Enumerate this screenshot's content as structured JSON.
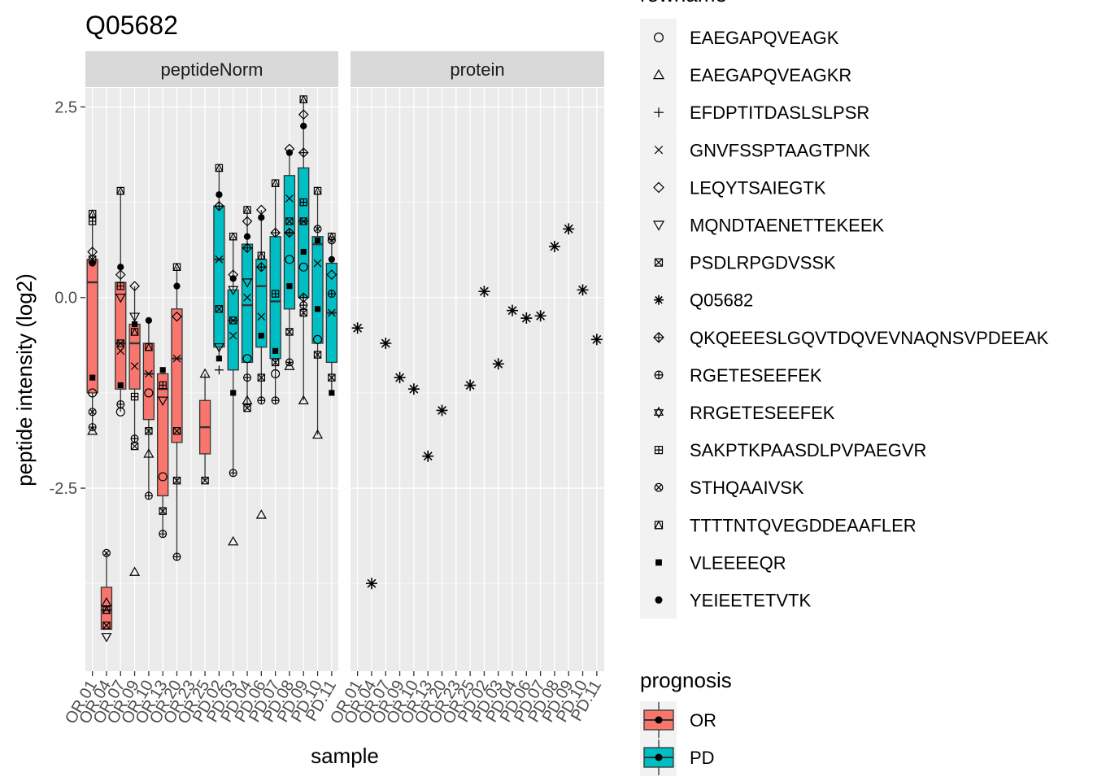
{
  "chart_data": {
    "type": "boxplot",
    "title": "Q05682",
    "xlabel": "sample",
    "ylabel": "peptide intensity (log2)",
    "ylim": [
      -4.9,
      2.75
    ],
    "yticks": [
      -2.5,
      0.0,
      2.5
    ],
    "ytick_labels": [
      "-2.5",
      "0.0",
      "2.5"
    ],
    "grid": true,
    "panels": [
      "peptideNorm",
      "protein"
    ],
    "samples": [
      "OR.01",
      "OR.04",
      "OR.07",
      "OR.09",
      "OR.10",
      "OR.13",
      "OR.20",
      "OR.23",
      "OR.25",
      "PD.02",
      "PD.03",
      "PD.04",
      "PD.06",
      "PD.07",
      "PD.08",
      "PD.09",
      "PD.10",
      "PD.11"
    ],
    "sample_prognosis": [
      "OR",
      "OR",
      "OR",
      "OR",
      "OR",
      "OR",
      "OR",
      "OR",
      "OR",
      "PD",
      "PD",
      "PD",
      "PD",
      "PD",
      "PD",
      "PD",
      "PD",
      "PD"
    ],
    "legend_rowname": {
      "title": "rowname",
      "entries": [
        {
          "label": "EAEGAPQVEAGK",
          "shape": "circle-open"
        },
        {
          "label": "EAEGAPQVEAGKR",
          "shape": "triangle-open"
        },
        {
          "label": "EFDPTITDASLSLPSR",
          "shape": "plus"
        },
        {
          "label": "GNVFSSPTAAGTPNK",
          "shape": "cross"
        },
        {
          "label": "LEQYTSAIEGTK",
          "shape": "diamond-open"
        },
        {
          "label": "MQNDTAENETTEKEEK",
          "shape": "triangle-down-open"
        },
        {
          "label": "PSDLRPGDVSSK",
          "shape": "square-cross"
        },
        {
          "label": "Q05682",
          "shape": "asterisk"
        },
        {
          "label": "QKQEEESLGQVTDQVEVNAQNSVPDEEAK",
          "shape": "diamond-plus"
        },
        {
          "label": "RGETESEEFEK",
          "shape": "circle-plus"
        },
        {
          "label": "RRGETESEEFEK",
          "shape": "triangles-up-down"
        },
        {
          "label": "SAKPTKPAASDLPVPAEGVR",
          "shape": "square-plus"
        },
        {
          "label": "STHQAAIVSK",
          "shape": "circle-cross"
        },
        {
          "label": "TTTTNTQVEGDDEAAFLER",
          "shape": "square-triangle"
        },
        {
          "label": "VLEEEEQR",
          "shape": "square-filled"
        },
        {
          "label": "YEIEETETVTK",
          "shape": "circle-filled"
        }
      ]
    },
    "legend_prognosis": {
      "title": "prognosis",
      "entries": [
        {
          "label": "OR",
          "color": "#F8766D"
        },
        {
          "label": "PD",
          "color": "#00BFC4"
        }
      ]
    },
    "boxes": [
      {
        "sample": "OR.01",
        "q1": -1.25,
        "med": 0.2,
        "q3": 0.5,
        "lo": -1.7,
        "hi": 1.1
      },
      {
        "sample": "OR.04",
        "q1": -4.35,
        "med": -4.1,
        "q3": -3.8,
        "lo": -4.35,
        "hi": -3.35
      },
      {
        "sample": "OR.07",
        "q1": -1.2,
        "med": -0.6,
        "q3": 0.2,
        "lo": -1.5,
        "hi": 1.4
      },
      {
        "sample": "OR.09",
        "q1": -1.2,
        "med": -0.6,
        "q3": -0.35,
        "lo": -1.85,
        "hi": 0.15
      },
      {
        "sample": "OR.10",
        "q1": -1.6,
        "med": -1.0,
        "q3": -0.6,
        "lo": -2.6,
        "hi": -0.3
      },
      {
        "sample": "OR.13",
        "q1": -2.6,
        "med": -1.2,
        "q3": -1.0,
        "lo": -3.1,
        "hi": -0.95
      },
      {
        "sample": "OR.20",
        "q1": -1.9,
        "med": -0.8,
        "q3": -0.15,
        "lo": -3.4,
        "hi": 0.4
      },
      {
        "sample": "OR.25",
        "q1": -2.05,
        "med": -1.7,
        "q3": -1.35,
        "lo": -2.4,
        "hi": -1.0
      },
      {
        "sample": "PD.02",
        "q1": -0.65,
        "med": 0.5,
        "q3": 1.2,
        "lo": -0.8,
        "hi": 1.7
      },
      {
        "sample": "PD.03",
        "q1": -0.95,
        "med": -0.3,
        "q3": 0.1,
        "lo": -2.3,
        "hi": 0.8
      },
      {
        "sample": "PD.04",
        "q1": -0.85,
        "med": -0.1,
        "q3": 0.7,
        "lo": -1.45,
        "hi": 1.15
      },
      {
        "sample": "PD.06",
        "q1": -0.65,
        "med": 0.15,
        "q3": 0.5,
        "lo": -1.35,
        "hi": 1.15
      },
      {
        "sample": "PD.07",
        "q1": -0.8,
        "med": -0.05,
        "q3": 0.8,
        "lo": -1.35,
        "hi": 1.5
      },
      {
        "sample": "PD.08",
        "q1": -0.15,
        "med": 0.85,
        "q3": 1.6,
        "lo": -0.9,
        "hi": 1.95
      },
      {
        "sample": "PD.09",
        "q1": 0.0,
        "med": 1.0,
        "q3": 1.7,
        "lo": -1.35,
        "hi": 2.6
      },
      {
        "sample": "PD.10",
        "q1": -0.6,
        "med": 0.7,
        "q3": 0.8,
        "lo": -1.8,
        "hi": 1.4
      },
      {
        "sample": "PD.11",
        "q1": -0.85,
        "med": -0.2,
        "q3": 0.45,
        "lo": -1.25,
        "hi": 0.8
      }
    ],
    "protein_points": [
      {
        "sample": "OR.01",
        "y": -0.4
      },
      {
        "sample": "OR.04",
        "y": -3.75
      },
      {
        "sample": "OR.07",
        "y": -0.6
      },
      {
        "sample": "OR.09",
        "y": -1.05
      },
      {
        "sample": "OR.10",
        "y": -1.2
      },
      {
        "sample": "OR.13",
        "y": -2.08
      },
      {
        "sample": "OR.20",
        "y": -1.48
      },
      {
        "sample": "OR.25",
        "y": -1.15
      },
      {
        "sample": "PD.02",
        "y": 0.08
      },
      {
        "sample": "PD.03",
        "y": -0.87
      },
      {
        "sample": "PD.04",
        "y": -0.17
      },
      {
        "sample": "PD.06",
        "y": -0.27
      },
      {
        "sample": "PD.07",
        "y": -0.24
      },
      {
        "sample": "PD.08",
        "y": 0.67
      },
      {
        "sample": "PD.09",
        "y": 0.9
      },
      {
        "sample": "PD.10",
        "y": 0.1
      },
      {
        "sample": "PD.11",
        "y": -0.55
      }
    ],
    "peptide_points": [
      {
        "sample": "OR.01",
        "y": 1.1,
        "shape": "square-triangle"
      },
      {
        "sample": "OR.01",
        "y": 1.0,
        "shape": "square-plus"
      },
      {
        "sample": "OR.01",
        "y": 0.6,
        "shape": "diamond-open"
      },
      {
        "sample": "OR.01",
        "y": 0.5,
        "shape": "square-cross"
      },
      {
        "sample": "OR.01",
        "y": 0.45,
        "shape": "circle-filled"
      },
      {
        "sample": "OR.01",
        "y": -1.05,
        "shape": "square-filled"
      },
      {
        "sample": "OR.01",
        "y": -1.25,
        "shape": "circle-open"
      },
      {
        "sample": "OR.01",
        "y": -1.5,
        "shape": "circle-cross"
      },
      {
        "sample": "OR.01",
        "y": -1.7,
        "shape": "circle-plus"
      },
      {
        "sample": "OR.01",
        "y": -1.75,
        "shape": "triangle-open"
      },
      {
        "sample": "OR.04",
        "y": -3.35,
        "shape": "circle-cross"
      },
      {
        "sample": "OR.04",
        "y": -4.0,
        "shape": "triangle-open"
      },
      {
        "sample": "OR.04",
        "y": -4.1,
        "shape": "square-triangle"
      },
      {
        "sample": "OR.04",
        "y": -4.3,
        "shape": "square-cross"
      },
      {
        "sample": "OR.04",
        "y": -4.45,
        "shape": "triangle-down-open"
      },
      {
        "sample": "OR.07",
        "y": 1.4,
        "shape": "square-triangle"
      },
      {
        "sample": "OR.07",
        "y": 0.4,
        "shape": "circle-filled"
      },
      {
        "sample": "OR.07",
        "y": 0.3,
        "shape": "diamond-open"
      },
      {
        "sample": "OR.07",
        "y": 0.15,
        "shape": "square-plus"
      },
      {
        "sample": "OR.07",
        "y": 0.0,
        "shape": "triangle-down-open"
      },
      {
        "sample": "OR.07",
        "y": -0.6,
        "shape": "square-cross"
      },
      {
        "sample": "OR.07",
        "y": -0.7,
        "shape": "cross"
      },
      {
        "sample": "OR.07",
        "y": -1.15,
        "shape": "square-filled"
      },
      {
        "sample": "OR.07",
        "y": -1.4,
        "shape": "circle-plus"
      },
      {
        "sample": "OR.07",
        "y": -1.5,
        "shape": "circle-open"
      },
      {
        "sample": "OR.09",
        "y": 0.15,
        "shape": "diamond-open"
      },
      {
        "sample": "OR.09",
        "y": -0.25,
        "shape": "triangle-down-open"
      },
      {
        "sample": "OR.09",
        "y": -0.35,
        "shape": "square-filled"
      },
      {
        "sample": "OR.09",
        "y": -0.45,
        "shape": "square-triangle"
      },
      {
        "sample": "OR.09",
        "y": -0.9,
        "shape": "cross"
      },
      {
        "sample": "OR.09",
        "y": -1.3,
        "shape": "square-plus"
      },
      {
        "sample": "OR.09",
        "y": -1.85,
        "shape": "circle-plus"
      },
      {
        "sample": "OR.09",
        "y": -1.95,
        "shape": "square-cross"
      },
      {
        "sample": "OR.09",
        "y": -3.6,
        "shape": "triangle-open"
      },
      {
        "sample": "OR.10",
        "y": -0.3,
        "shape": "circle-filled"
      },
      {
        "sample": "OR.10",
        "y": -0.65,
        "shape": "square-triangle"
      },
      {
        "sample": "OR.10",
        "y": -1.0,
        "shape": "cross"
      },
      {
        "sample": "OR.10",
        "y": -1.25,
        "shape": "circle-open"
      },
      {
        "sample": "OR.10",
        "y": -1.75,
        "shape": "square-cross"
      },
      {
        "sample": "OR.10",
        "y": -2.05,
        "shape": "triangle-open"
      },
      {
        "sample": "OR.10",
        "y": -2.6,
        "shape": "circle-plus"
      },
      {
        "sample": "OR.13",
        "y": -0.95,
        "shape": "square-filled"
      },
      {
        "sample": "OR.13",
        "y": -1.15,
        "shape": "square-plus"
      },
      {
        "sample": "OR.13",
        "y": -1.35,
        "shape": "triangle-down-open"
      },
      {
        "sample": "OR.13",
        "y": -2.35,
        "shape": "circle-open"
      },
      {
        "sample": "OR.13",
        "y": -2.8,
        "shape": "square-cross"
      },
      {
        "sample": "OR.13",
        "y": -3.1,
        "shape": "circle-plus"
      },
      {
        "sample": "OR.20",
        "y": 0.4,
        "shape": "square-triangle"
      },
      {
        "sample": "OR.20",
        "y": 0.15,
        "shape": "circle-filled"
      },
      {
        "sample": "OR.20",
        "y": -0.25,
        "shape": "diamond-open"
      },
      {
        "sample": "OR.20",
        "y": -0.8,
        "shape": "cross"
      },
      {
        "sample": "OR.20",
        "y": -1.75,
        "shape": "square-cross"
      },
      {
        "sample": "OR.20",
        "y": -2.4,
        "shape": "square-cross"
      },
      {
        "sample": "OR.20",
        "y": -3.4,
        "shape": "circle-plus"
      },
      {
        "sample": "OR.25",
        "y": -1.0,
        "shape": "triangle-open"
      },
      {
        "sample": "OR.25",
        "y": -2.4,
        "shape": "square-cross"
      },
      {
        "sample": "PD.02",
        "y": 1.7,
        "shape": "square-triangle"
      },
      {
        "sample": "PD.02",
        "y": 1.35,
        "shape": "circle-filled"
      },
      {
        "sample": "PD.02",
        "y": 1.2,
        "shape": "diamond-plus"
      },
      {
        "sample": "PD.02",
        "y": 0.5,
        "shape": "cross"
      },
      {
        "sample": "PD.02",
        "y": -0.15,
        "shape": "square-cross"
      },
      {
        "sample": "PD.02",
        "y": -0.65,
        "shape": "triangle-down-open"
      },
      {
        "sample": "PD.02",
        "y": -0.8,
        "shape": "square-filled"
      },
      {
        "sample": "PD.02",
        "y": -0.95,
        "shape": "plus"
      },
      {
        "sample": "PD.03",
        "y": 0.8,
        "shape": "square-triangle"
      },
      {
        "sample": "PD.03",
        "y": 0.3,
        "shape": "diamond-open"
      },
      {
        "sample": "PD.03",
        "y": 0.25,
        "shape": "circle-filled"
      },
      {
        "sample": "PD.03",
        "y": 0.1,
        "shape": "triangle-down-open"
      },
      {
        "sample": "PD.03",
        "y": -0.3,
        "shape": "square-cross"
      },
      {
        "sample": "PD.03",
        "y": -0.5,
        "shape": "cross"
      },
      {
        "sample": "PD.03",
        "y": -1.25,
        "shape": "square-filled"
      },
      {
        "sample": "PD.03",
        "y": -2.3,
        "shape": "circle-plus"
      },
      {
        "sample": "PD.03",
        "y": -3.2,
        "shape": "triangle-open"
      },
      {
        "sample": "PD.04",
        "y": 1.15,
        "shape": "square-triangle"
      },
      {
        "sample": "PD.04",
        "y": 1.0,
        "shape": "diamond-open"
      },
      {
        "sample": "PD.04",
        "y": 0.8,
        "shape": "circle-filled"
      },
      {
        "sample": "PD.04",
        "y": 0.65,
        "shape": "diamond-plus"
      },
      {
        "sample": "PD.04",
        "y": 0.2,
        "shape": "triangle-down-open"
      },
      {
        "sample": "PD.04",
        "y": 0.0,
        "shape": "cross"
      },
      {
        "sample": "PD.04",
        "y": -0.8,
        "shape": "circle-open"
      },
      {
        "sample": "PD.04",
        "y": -1.05,
        "shape": "circle-plus"
      },
      {
        "sample": "PD.04",
        "y": -1.35,
        "shape": "triangle-open"
      },
      {
        "sample": "PD.04",
        "y": -1.45,
        "shape": "square-cross"
      },
      {
        "sample": "PD.06",
        "y": 1.15,
        "shape": "diamond-open"
      },
      {
        "sample": "PD.06",
        "y": 1.05,
        "shape": "circle-filled"
      },
      {
        "sample": "PD.06",
        "y": 0.55,
        "shape": "square-triangle"
      },
      {
        "sample": "PD.06",
        "y": 0.4,
        "shape": "diamond-plus"
      },
      {
        "sample": "PD.06",
        "y": -0.25,
        "shape": "cross"
      },
      {
        "sample": "PD.06",
        "y": -0.5,
        "shape": "square-filled"
      },
      {
        "sample": "PD.06",
        "y": -1.05,
        "shape": "square-cross"
      },
      {
        "sample": "PD.06",
        "y": -1.35,
        "shape": "circle-plus"
      },
      {
        "sample": "PD.06",
        "y": -2.85,
        "shape": "triangle-open"
      },
      {
        "sample": "PD.07",
        "y": 1.5,
        "shape": "square-triangle"
      },
      {
        "sample": "PD.07",
        "y": 0.85,
        "shape": "diamond-plus"
      },
      {
        "sample": "PD.07",
        "y": 0.05,
        "shape": "square-plus"
      },
      {
        "sample": "PD.07",
        "y": -0.7,
        "shape": "square-filled"
      },
      {
        "sample": "PD.07",
        "y": -0.85,
        "shape": "square-cross"
      },
      {
        "sample": "PD.07",
        "y": -1.0,
        "shape": "circle-open"
      },
      {
        "sample": "PD.07",
        "y": -1.35,
        "shape": "circle-plus"
      },
      {
        "sample": "PD.08",
        "y": 1.95,
        "shape": "diamond-open"
      },
      {
        "sample": "PD.08",
        "y": 1.9,
        "shape": "circle-filled"
      },
      {
        "sample": "PD.08",
        "y": 1.3,
        "shape": "cross"
      },
      {
        "sample": "PD.08",
        "y": 1.0,
        "shape": "square-cross"
      },
      {
        "sample": "PD.08",
        "y": 0.85,
        "shape": "diamond-plus"
      },
      {
        "sample": "PD.08",
        "y": 0.5,
        "shape": "circle-open"
      },
      {
        "sample": "PD.08",
        "y": 0.15,
        "shape": "square-filled"
      },
      {
        "sample": "PD.08",
        "y": -0.45,
        "shape": "square-cross"
      },
      {
        "sample": "PD.08",
        "y": -0.85,
        "shape": "circle-plus"
      },
      {
        "sample": "PD.08",
        "y": -0.9,
        "shape": "triangle-open"
      },
      {
        "sample": "PD.09",
        "y": 2.6,
        "shape": "square-triangle"
      },
      {
        "sample": "PD.09",
        "y": 2.4,
        "shape": "diamond-open"
      },
      {
        "sample": "PD.09",
        "y": 2.25,
        "shape": "circle-filled"
      },
      {
        "sample": "PD.09",
        "y": 1.9,
        "shape": "diamond-plus"
      },
      {
        "sample": "PD.09",
        "y": 1.25,
        "shape": "square-plus"
      },
      {
        "sample": "PD.09",
        "y": 1.0,
        "shape": "square-cross"
      },
      {
        "sample": "PD.09",
        "y": 0.6,
        "shape": "square-filled"
      },
      {
        "sample": "PD.09",
        "y": 0.4,
        "shape": "circle-open"
      },
      {
        "sample": "PD.09",
        "y": 0.0,
        "shape": "diamond-plus"
      },
      {
        "sample": "PD.09",
        "y": -0.1,
        "shape": "circle-plus"
      },
      {
        "sample": "PD.09",
        "y": -0.2,
        "shape": "square-cross"
      },
      {
        "sample": "PD.09",
        "y": -1.35,
        "shape": "triangle-open"
      },
      {
        "sample": "PD.10",
        "y": 1.4,
        "shape": "square-triangle"
      },
      {
        "sample": "PD.10",
        "y": 0.9,
        "shape": "circle-cross"
      },
      {
        "sample": "PD.10",
        "y": 0.75,
        "shape": "square-filled"
      },
      {
        "sample": "PD.10",
        "y": 0.45,
        "shape": "cross"
      },
      {
        "sample": "PD.10",
        "y": -0.15,
        "shape": "square-filled"
      },
      {
        "sample": "PD.10",
        "y": -0.55,
        "shape": "circle-open"
      },
      {
        "sample": "PD.10",
        "y": -0.75,
        "shape": "square-cross"
      },
      {
        "sample": "PD.10",
        "y": -1.8,
        "shape": "triangle-open"
      },
      {
        "sample": "PD.11",
        "y": 0.8,
        "shape": "square-triangle"
      },
      {
        "sample": "PD.11",
        "y": 0.75,
        "shape": "circle-cross"
      },
      {
        "sample": "PD.11",
        "y": 0.5,
        "shape": "circle-filled"
      },
      {
        "sample": "PD.11",
        "y": 0.3,
        "shape": "diamond-open"
      },
      {
        "sample": "PD.11",
        "y": 0.05,
        "shape": "circle-plus"
      },
      {
        "sample": "PD.11",
        "y": -0.2,
        "shape": "cross"
      },
      {
        "sample": "PD.11",
        "y": -1.05,
        "shape": "square-cross"
      },
      {
        "sample": "PD.11",
        "y": -1.25,
        "shape": "square-filled"
      }
    ]
  }
}
